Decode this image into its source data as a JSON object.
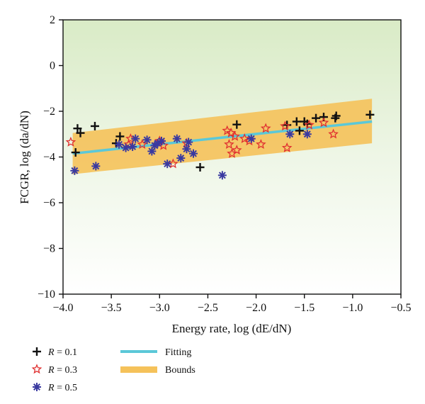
{
  "chart_data": {
    "type": "scatter",
    "xlabel": "Energy rate, log (dE/dN)",
    "ylabel": "FCGR, log (da/dN)",
    "xlim": [
      -4.0,
      -0.5
    ],
    "ylim": [
      -10,
      2
    ],
    "xticks": [
      -4.0,
      -3.5,
      -3.0,
      -2.5,
      -2.0,
      -1.5,
      -1.0,
      -0.5
    ],
    "xtick_labels": [
      "−4.0",
      "−3.5",
      "−3.0",
      "−2.5",
      "−2.0",
      "−1.5",
      "−1.0",
      "−0.5"
    ],
    "yticks": [
      2,
      0,
      -2,
      -4,
      -6,
      -8,
      -10
    ],
    "ytick_labels": [
      "2",
      "0",
      "−2",
      "−4",
      "−6",
      "−8",
      "−10"
    ],
    "grid": false,
    "legend_position": "bottom-left (below plot)",
    "fitting": {
      "name": "Fitting",
      "color": "#5bc8d8",
      "x": [
        -3.9,
        -0.8
      ],
      "y": [
        -3.85,
        -2.45
      ]
    },
    "bounds": {
      "name": "Bounds",
      "color": "#f5c25a",
      "x": [
        -3.9,
        -0.8
      ],
      "upper": [
        -2.95,
        -1.45
      ],
      "lower": [
        -4.75,
        -3.4
      ]
    },
    "series": [
      {
        "name": "R = 0.1",
        "label_var": "R",
        "label_val": "= 0.1",
        "marker": "plus",
        "color": "#111111",
        "points": [
          [
            -3.87,
            -3.8
          ],
          [
            -3.85,
            -2.75
          ],
          [
            -3.82,
            -2.95
          ],
          [
            -3.67,
            -2.65
          ],
          [
            -3.45,
            -3.4
          ],
          [
            -3.41,
            -3.1
          ],
          [
            -2.58,
            -4.45
          ],
          [
            -2.2,
            -2.58
          ],
          [
            -1.68,
            -2.6
          ],
          [
            -1.58,
            -2.45
          ],
          [
            -1.55,
            -2.85
          ],
          [
            -1.5,
            -2.45
          ],
          [
            -1.47,
            -2.55
          ],
          [
            -1.38,
            -2.3
          ],
          [
            -1.3,
            -2.25
          ],
          [
            -1.18,
            -2.3
          ],
          [
            -1.17,
            -2.2
          ],
          [
            -0.82,
            -2.15
          ]
        ]
      },
      {
        "name": "R = 0.3",
        "label_var": "R",
        "label_val": "= 0.3",
        "marker": "star",
        "color": "#e03030",
        "points": [
          [
            -3.92,
            -3.35
          ],
          [
            -3.32,
            -3.45
          ],
          [
            -3.3,
            -3.2
          ],
          [
            -3.18,
            -3.45
          ],
          [
            -3.0,
            -3.3
          ],
          [
            -2.96,
            -3.5
          ],
          [
            -2.86,
            -4.3
          ],
          [
            -2.72,
            -3.4
          ],
          [
            -2.3,
            -2.85
          ],
          [
            -2.28,
            -3.45
          ],
          [
            -2.26,
            -2.95
          ],
          [
            -2.25,
            -3.85
          ],
          [
            -2.22,
            -3.1
          ],
          [
            -2.2,
            -3.7
          ],
          [
            -2.12,
            -3.2
          ],
          [
            -2.07,
            -3.3
          ],
          [
            -1.95,
            -3.45
          ],
          [
            -1.9,
            -2.75
          ],
          [
            -1.7,
            -2.65
          ],
          [
            -1.68,
            -3.6
          ],
          [
            -1.45,
            -2.6
          ],
          [
            -1.3,
            -2.5
          ],
          [
            -1.2,
            -3.0
          ]
        ]
      },
      {
        "name": "R = 0.5",
        "label_var": "R",
        "label_val": "= 0.5",
        "marker": "asterisk",
        "color": "#3a3aa0",
        "points": [
          [
            -3.88,
            -4.6
          ],
          [
            -3.66,
            -4.4
          ],
          [
            -3.42,
            -3.45
          ],
          [
            -3.35,
            -3.6
          ],
          [
            -3.28,
            -3.55
          ],
          [
            -3.25,
            -3.2
          ],
          [
            -3.13,
            -3.25
          ],
          [
            -3.08,
            -3.75
          ],
          [
            -3.05,
            -3.5
          ],
          [
            -3.02,
            -3.4
          ],
          [
            -2.98,
            -3.3
          ],
          [
            -2.92,
            -4.3
          ],
          [
            -2.82,
            -3.2
          ],
          [
            -2.78,
            -4.05
          ],
          [
            -2.72,
            -3.65
          ],
          [
            -2.7,
            -3.35
          ],
          [
            -2.65,
            -3.85
          ],
          [
            -2.35,
            -4.8
          ],
          [
            -2.05,
            -3.2
          ],
          [
            -1.65,
            -3.0
          ],
          [
            -1.47,
            -3.0
          ]
        ]
      }
    ]
  }
}
